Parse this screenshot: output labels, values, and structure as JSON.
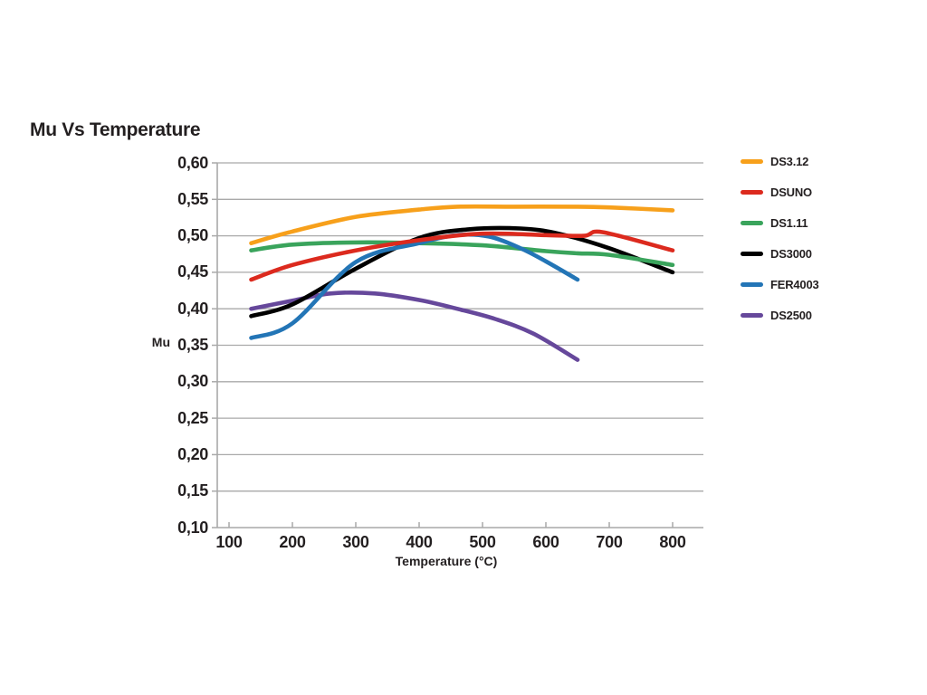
{
  "colors": {
    "background": "#ffffff",
    "text": "#231f20",
    "grid": "#a9a9a9",
    "axis": "#a9a9a9"
  },
  "chart_data": {
    "type": "line",
    "title": "Mu Vs Temperature",
    "xlabel": "Temperature (°C)",
    "ylabel": "Mu",
    "xlim": [
      100,
      850
    ],
    "ylim": [
      0.1,
      0.6
    ],
    "grid": true,
    "legend_position": "right",
    "decimal_separator": "comma",
    "x_ticks": [
      100,
      200,
      300,
      400,
      500,
      600,
      700,
      800
    ],
    "x_tick_labels": [
      "100",
      "200",
      "300",
      "400",
      "500",
      "600",
      "700",
      "800"
    ],
    "y_ticks": [
      0.1,
      0.15,
      0.2,
      0.25,
      0.3,
      0.35,
      0.4,
      0.45,
      0.5,
      0.55,
      0.6
    ],
    "y_tick_labels": [
      "0,10",
      "0,15",
      "0,20",
      "0,25",
      "0,30",
      "0,35",
      "0,40",
      "0,45",
      "0,50",
      "0,55",
      "0,60"
    ],
    "series": [
      {
        "name": "DS3.12",
        "color": "#f7a01b",
        "x": [
          135,
          200,
          300,
          400,
          460,
          550,
          650,
          700,
          800
        ],
        "y": [
          0.49,
          0.506,
          0.526,
          0.536,
          0.54,
          0.54,
          0.54,
          0.539,
          0.535
        ]
      },
      {
        "name": "DSUNO",
        "color": "#dc2a1e",
        "x": [
          135,
          200,
          300,
          400,
          500,
          600,
          660,
          690,
          800
        ],
        "y": [
          0.44,
          0.46,
          0.48,
          0.494,
          0.503,
          0.501,
          0.5,
          0.505,
          0.48
        ]
      },
      {
        "name": "DS1.11",
        "color": "#3aa45c",
        "x": [
          135,
          200,
          300,
          400,
          500,
          600,
          650,
          700,
          800
        ],
        "y": [
          0.48,
          0.488,
          0.491,
          0.49,
          0.487,
          0.479,
          0.476,
          0.474,
          0.46
        ]
      },
      {
        "name": "DS3000",
        "color": "#000000",
        "x": [
          135,
          200,
          300,
          400,
          480,
          560,
          620,
          700,
          800
        ],
        "y": [
          0.39,
          0.406,
          0.455,
          0.497,
          0.509,
          0.51,
          0.503,
          0.483,
          0.45
        ]
      },
      {
        "name": "FER4003",
        "color": "#2375b6",
        "x": [
          135,
          200,
          300,
          400,
          460,
          510,
          560,
          600,
          650
        ],
        "y": [
          0.36,
          0.38,
          0.464,
          0.49,
          0.501,
          0.499,
          0.483,
          0.465,
          0.44
        ]
      },
      {
        "name": "DS2500",
        "color": "#66489b",
        "x": [
          135,
          200,
          260,
          330,
          400,
          460,
          520,
          580,
          650
        ],
        "y": [
          0.4,
          0.411,
          0.421,
          0.421,
          0.412,
          0.4,
          0.386,
          0.366,
          0.33
        ]
      }
    ]
  }
}
